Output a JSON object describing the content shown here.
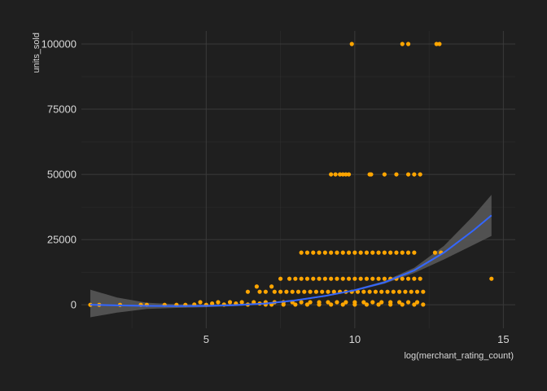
{
  "chart_data": {
    "type": "scatter",
    "title": "",
    "xlabel": "log(merchant_rating_count)",
    "ylabel": "units_sold",
    "xlim": [
      0.8,
      15.4
    ],
    "ylim": [
      -9000,
      105000
    ],
    "x_ticks": [
      5,
      10,
      15
    ],
    "x_tick_labels": [
      "5",
      "10",
      "15"
    ],
    "y_ticks": [
      0,
      25000,
      50000,
      75000,
      100000
    ],
    "y_tick_labels": [
      "0",
      "25000",
      "50000",
      "75000",
      "100000"
    ],
    "grid": true,
    "background": "#1f1f1f",
    "grid_color": "#3a3a3a",
    "point_color": "#ffa500",
    "smooth_color": "#3366ff",
    "ribbon_color": "#5a5a5a",
    "series": [
      {
        "points": [
          [
            1.1,
            0
          ],
          [
            1.4,
            0
          ],
          [
            2.1,
            0
          ],
          [
            2.8,
            0
          ],
          [
            3.0,
            0
          ],
          [
            3.6,
            0
          ],
          [
            4.0,
            0
          ],
          [
            4.3,
            0
          ],
          [
            4.6,
            100
          ],
          [
            4.8,
            1000
          ],
          [
            5.0,
            0
          ],
          [
            5.2,
            500
          ],
          [
            5.4,
            1000
          ],
          [
            5.6,
            100
          ],
          [
            5.8,
            1000
          ],
          [
            6.0,
            500
          ],
          [
            6.2,
            1000
          ],
          [
            6.4,
            100
          ],
          [
            6.6,
            1000
          ],
          [
            6.8,
            500
          ],
          [
            7.0,
            100
          ],
          [
            9.9,
            100000
          ],
          [
            11.6,
            100000
          ],
          [
            11.8,
            100000
          ],
          [
            12.75,
            100000
          ],
          [
            12.85,
            100000
          ],
          [
            9.2,
            50000
          ],
          [
            9.35,
            50000
          ],
          [
            9.5,
            50000
          ],
          [
            9.6,
            50000
          ],
          [
            9.7,
            50000
          ],
          [
            9.8,
            50000
          ],
          [
            10.5,
            50000
          ],
          [
            10.55,
            50000
          ],
          [
            11.0,
            50000
          ],
          [
            11.4,
            50000
          ],
          [
            11.8,
            50000
          ],
          [
            12.0,
            50000
          ],
          [
            12.2,
            50000
          ],
          [
            8.2,
            20000
          ],
          [
            8.4,
            20000
          ],
          [
            8.6,
            20000
          ],
          [
            8.8,
            20000
          ],
          [
            9.0,
            20000
          ],
          [
            9.2,
            20000
          ],
          [
            9.4,
            20000
          ],
          [
            9.6,
            20000
          ],
          [
            9.8,
            20000
          ],
          [
            10.0,
            20000
          ],
          [
            10.2,
            20000
          ],
          [
            10.4,
            20000
          ],
          [
            10.6,
            20000
          ],
          [
            10.8,
            20000
          ],
          [
            11.0,
            20000
          ],
          [
            11.2,
            20000
          ],
          [
            11.4,
            20000
          ],
          [
            11.6,
            20000
          ],
          [
            11.8,
            20000
          ],
          [
            12.0,
            20000
          ],
          [
            12.7,
            20000
          ],
          [
            12.9,
            20000
          ],
          [
            7.5,
            10000
          ],
          [
            7.8,
            10000
          ],
          [
            8.0,
            10000
          ],
          [
            8.2,
            10000
          ],
          [
            8.4,
            10000
          ],
          [
            8.6,
            10000
          ],
          [
            8.8,
            10000
          ],
          [
            9.0,
            10000
          ],
          [
            9.2,
            10000
          ],
          [
            9.4,
            10000
          ],
          [
            9.6,
            10000
          ],
          [
            9.8,
            10000
          ],
          [
            10.0,
            10000
          ],
          [
            10.2,
            10000
          ],
          [
            10.4,
            10000
          ],
          [
            10.6,
            10000
          ],
          [
            10.8,
            10000
          ],
          [
            11.0,
            10000
          ],
          [
            11.2,
            10000
          ],
          [
            11.4,
            10000
          ],
          [
            11.6,
            10000
          ],
          [
            11.8,
            10000
          ],
          [
            12.0,
            10000
          ],
          [
            12.2,
            10000
          ],
          [
            14.6,
            10000
          ],
          [
            6.7,
            7000
          ],
          [
            7.2,
            7000
          ],
          [
            6.4,
            5000
          ],
          [
            6.8,
            5000
          ],
          [
            7.0,
            5000
          ],
          [
            7.3,
            5000
          ],
          [
            7.5,
            5000
          ],
          [
            7.7,
            5000
          ],
          [
            7.9,
            5000
          ],
          [
            8.1,
            5000
          ],
          [
            8.3,
            5000
          ],
          [
            8.5,
            5000
          ],
          [
            8.7,
            5000
          ],
          [
            8.9,
            5000
          ],
          [
            9.1,
            5000
          ],
          [
            9.3,
            5000
          ],
          [
            9.5,
            5000
          ],
          [
            9.7,
            5000
          ],
          [
            9.9,
            5000
          ],
          [
            10.1,
            5000
          ],
          [
            10.3,
            5000
          ],
          [
            10.5,
            5000
          ],
          [
            10.7,
            5000
          ],
          [
            10.9,
            5000
          ],
          [
            11.1,
            5000
          ],
          [
            11.3,
            5000
          ],
          [
            11.5,
            5000
          ],
          [
            11.7,
            5000
          ],
          [
            11.9,
            5000
          ],
          [
            12.1,
            5000
          ],
          [
            12.3,
            5000
          ],
          [
            7.0,
            1000
          ],
          [
            7.3,
            1000
          ],
          [
            7.6,
            1000
          ],
          [
            7.9,
            1000
          ],
          [
            8.2,
            1000
          ],
          [
            8.5,
            1000
          ],
          [
            8.8,
            1000
          ],
          [
            9.1,
            1000
          ],
          [
            9.4,
            1000
          ],
          [
            9.7,
            1000
          ],
          [
            10.0,
            1000
          ],
          [
            10.3,
            1000
          ],
          [
            10.6,
            1000
          ],
          [
            10.9,
            1000
          ],
          [
            11.2,
            1000
          ],
          [
            11.5,
            1000
          ],
          [
            11.8,
            1000
          ],
          [
            12.1,
            1000
          ],
          [
            7.2,
            100
          ],
          [
            7.6,
            100
          ],
          [
            8.0,
            100
          ],
          [
            8.4,
            100
          ],
          [
            8.8,
            100
          ],
          [
            9.2,
            100
          ],
          [
            9.6,
            100
          ],
          [
            10.0,
            100
          ],
          [
            10.4,
            100
          ],
          [
            10.8,
            100
          ],
          [
            11.2,
            100
          ],
          [
            11.6,
            100
          ],
          [
            12.0,
            100
          ],
          [
            12.3,
            100
          ]
        ]
      }
    ],
    "smooth": [
      {
        "x": 1.1,
        "y": 0,
        "lo": -4800,
        "hi": 5800
      },
      {
        "x": 2.0,
        "y": -200,
        "lo": -3000,
        "hi": 2800
      },
      {
        "x": 3.0,
        "y": -400,
        "lo": -1600,
        "hi": 800
      },
      {
        "x": 4.0,
        "y": -500,
        "lo": -1200,
        "hi": 200
      },
      {
        "x": 5.0,
        "y": -400,
        "lo": -900,
        "hi": 100
      },
      {
        "x": 6.0,
        "y": -100,
        "lo": -500,
        "hi": 300
      },
      {
        "x": 7.0,
        "y": 500,
        "lo": 150,
        "hi": 850
      },
      {
        "x": 8.0,
        "y": 1700,
        "lo": 1400,
        "hi": 2000
      },
      {
        "x": 9.0,
        "y": 3400,
        "lo": 3100,
        "hi": 3700
      },
      {
        "x": 10.0,
        "y": 5600,
        "lo": 5300,
        "hi": 5900
      },
      {
        "x": 11.0,
        "y": 8600,
        "lo": 8100,
        "hi": 9100
      },
      {
        "x": 12.0,
        "y": 13200,
        "lo": 12200,
        "hi": 14200
      },
      {
        "x": 13.0,
        "y": 20000,
        "lo": 17400,
        "hi": 22600
      },
      {
        "x": 14.0,
        "y": 28600,
        "lo": 23000,
        "hi": 34200
      },
      {
        "x": 14.6,
        "y": 34300,
        "lo": 26400,
        "hi": 42200
      }
    ]
  }
}
